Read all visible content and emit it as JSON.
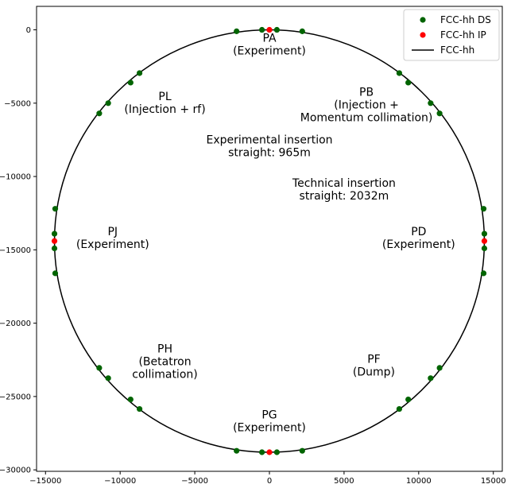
{
  "chart_data": {
    "type": "scatter",
    "xlim": [
      -15600,
      15600
    ],
    "ylim": [
      -30100,
      1600
    ],
    "xticks": [
      -15000,
      -10000,
      -5000,
      0,
      5000,
      10000,
      15000
    ],
    "yticks": [
      0,
      -5000,
      -10000,
      -15000,
      -20000,
      -25000,
      -30000
    ],
    "xtick_labels": [
      "−15000",
      "−10000",
      "−5000",
      "0",
      "5000",
      "10000",
      "15000"
    ],
    "ytick_labels": [
      "0",
      "−5000",
      "−10000",
      "−15000",
      "−20000",
      "−25000",
      "−30000"
    ],
    "grid": false,
    "legend_position": "top-right",
    "ring": {
      "name": "FCC-hh",
      "center": [
        0,
        -14400
      ],
      "radius": 14400,
      "color": "#000000"
    },
    "series": [
      {
        "name": "FCC-hh DS",
        "color": "#006400",
        "points": [
          [
            -500,
            0
          ],
          [
            500,
            0
          ],
          [
            -2200,
            -100
          ],
          [
            2200,
            -100
          ],
          [
            -500,
            -28800
          ],
          [
            500,
            -28800
          ],
          [
            -2200,
            -28700
          ],
          [
            2200,
            -28700
          ],
          [
            -14400,
            -13900
          ],
          [
            -14400,
            -14900
          ],
          [
            -14350,
            -12200
          ],
          [
            -14350,
            -16600
          ],
          [
            14400,
            -13900
          ],
          [
            14400,
            -14900
          ],
          [
            14350,
            -12200
          ],
          [
            14350,
            -16600
          ],
          [
            -8700,
            -2950
          ],
          [
            -9300,
            -3600
          ],
          [
            -10800,
            -5000
          ],
          [
            -11400,
            -5700
          ],
          [
            8700,
            -2950
          ],
          [
            9300,
            -3600
          ],
          [
            10800,
            -5000
          ],
          [
            11400,
            -5700
          ],
          [
            -8700,
            -25850
          ],
          [
            -9300,
            -25200
          ],
          [
            -10800,
            -23750
          ],
          [
            -11400,
            -23050
          ],
          [
            8700,
            -25850
          ],
          [
            9300,
            -25200
          ],
          [
            10800,
            -23750
          ],
          [
            11400,
            -23050
          ]
        ]
      },
      {
        "name": "FCC-hh IP",
        "color": "#ff0000",
        "points": [
          [
            0,
            0
          ],
          [
            0,
            -28800
          ],
          [
            -14400,
            -14400
          ],
          [
            14400,
            -14400
          ]
        ]
      }
    ],
    "legend": [
      {
        "label": "FCC-hh DS",
        "kind": "marker",
        "color": "#006400"
      },
      {
        "label": "FCC-hh IP",
        "kind": "marker",
        "color": "#ff0000"
      },
      {
        "label": "FCC-hh",
        "kind": "line",
        "color": "#000000"
      }
    ],
    "annotations": [
      {
        "lines": [
          "PA",
          "(Experiment)"
        ],
        "x": 0,
        "y": -800
      },
      {
        "lines": [
          "PB",
          "(Injection +",
          "Momentum collimation)"
        ],
        "x": 6500,
        "y": -4500
      },
      {
        "lines": [
          "PL",
          "(Injection + rf)"
        ],
        "x": -7000,
        "y": -4800
      },
      {
        "lines": [
          "Experimental insertion",
          "straight: 965m"
        ],
        "x": 0,
        "y": -7750
      },
      {
        "lines": [
          "Technical insertion",
          "straight: 2032m"
        ],
        "x": 5000,
        "y": -10700
      },
      {
        "lines": [
          "PJ",
          "(Experiment)"
        ],
        "x": -10500,
        "y": -14000
      },
      {
        "lines": [
          "PD",
          "(Experiment)"
        ],
        "x": 10000,
        "y": -14000
      },
      {
        "lines": [
          "PH",
          "(Betatron",
          "collimation)"
        ],
        "x": -7000,
        "y": -22000
      },
      {
        "lines": [
          "PF",
          "(Dump)"
        ],
        "x": 7000,
        "y": -22700
      },
      {
        "lines": [
          "PG",
          "(Experiment)"
        ],
        "x": 0,
        "y": -26500
      }
    ]
  }
}
